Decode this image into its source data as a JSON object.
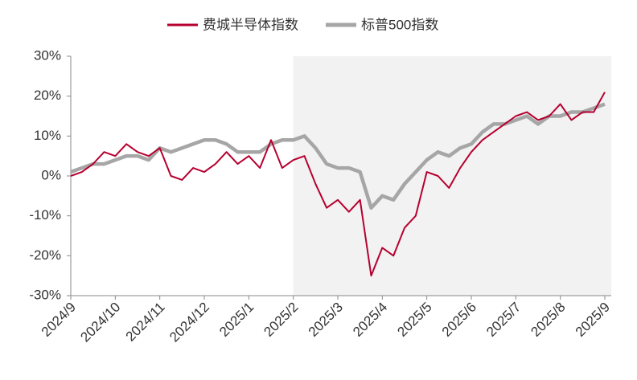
{
  "chart_data": {
    "type": "line",
    "x": [
      0,
      0.25,
      0.5,
      0.75,
      1,
      1.25,
      1.5,
      1.75,
      2,
      2.25,
      2.5,
      2.75,
      3,
      3.25,
      3.5,
      3.75,
      4,
      4.25,
      4.5,
      4.75,
      5,
      5.25,
      5.5,
      5.75,
      6,
      6.25,
      6.5,
      6.75,
      7,
      7.25,
      7.5,
      7.75,
      8,
      8.25,
      8.5,
      8.75,
      9,
      9.25,
      9.5,
      9.75,
      10,
      10.25,
      10.5,
      10.75,
      11,
      11.25,
      11.5,
      11.75,
      12
    ],
    "series": [
      {
        "name": "费城半导体指数",
        "color": "#b5002f",
        "values": [
          0,
          1,
          3,
          6,
          5,
          8,
          6,
          5,
          7,
          0,
          -1,
          2,
          1,
          3,
          6,
          3,
          5,
          2,
          9,
          2,
          4,
          5,
          -2,
          -8,
          -6,
          -9,
          -6,
          -25,
          -18,
          -20,
          -13,
          -10,
          1,
          0,
          -3,
          2,
          6,
          9,
          11,
          13,
          15,
          16,
          14,
          15,
          18,
          14,
          16,
          16,
          21
        ]
      },
      {
        "name": "标普500指数",
        "color": "#a6a6a6",
        "values": [
          1,
          2,
          3,
          3,
          4,
          5,
          5,
          4,
          7,
          6,
          7,
          8,
          9,
          9,
          8,
          6,
          6,
          6,
          8,
          9,
          9,
          10,
          7,
          3,
          2,
          2,
          1,
          -8,
          -5,
          -6,
          -2,
          1,
          4,
          6,
          5,
          7,
          8,
          11,
          13,
          13,
          14,
          15,
          13,
          15,
          15,
          16,
          16,
          17,
          18
        ]
      }
    ],
    "xlim": [
      0,
      12
    ],
    "xticks": [
      {
        "value": 0,
        "label": "2024/9"
      },
      {
        "value": 1,
        "label": "2024/10"
      },
      {
        "value": 2,
        "label": "2024/11"
      },
      {
        "value": 3,
        "label": "2024/12"
      },
      {
        "value": 4,
        "label": "2025/1"
      },
      {
        "value": 5,
        "label": "2025/2"
      },
      {
        "value": 6,
        "label": "2025/3"
      },
      {
        "value": 7,
        "label": "2025/4"
      },
      {
        "value": 8,
        "label": "2025/5"
      },
      {
        "value": 9,
        "label": "2025/6"
      },
      {
        "value": 10,
        "label": "2025/7"
      },
      {
        "value": 11,
        "label": "2025/8"
      },
      {
        "value": 12,
        "label": "2025/9"
      }
    ],
    "ylim": [
      -30,
      30
    ],
    "yticks": [
      {
        "value": -30,
        "label": "-30%"
      },
      {
        "value": -20,
        "label": "-20%"
      },
      {
        "value": -10,
        "label": "-10%"
      },
      {
        "value": 0,
        "label": "0%"
      },
      {
        "value": 10,
        "label": "10%"
      },
      {
        "value": 20,
        "label": "20%"
      },
      {
        "value": 30,
        "label": "30%"
      }
    ],
    "shaded_xrange": [
      5,
      12
    ],
    "legend": "top"
  }
}
